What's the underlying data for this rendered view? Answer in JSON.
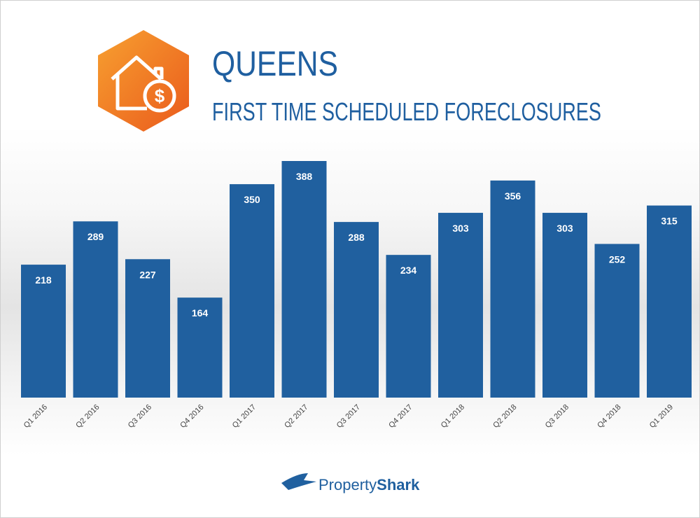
{
  "chart_data": {
    "type": "bar",
    "title": "QUEENS",
    "subtitle": "FIRST TIME SCHEDULED FORECLOSURES",
    "categories": [
      "Q1 2016",
      "Q2 2016",
      "Q3 2016",
      "Q4 2016",
      "Q1 2017",
      "Q2 2017",
      "Q3 2017",
      "Q4 2017",
      "Q1 2018",
      "Q2 2018",
      "Q3 2018",
      "Q4 2018",
      "Q1 2019"
    ],
    "values": [
      218,
      289,
      227,
      164,
      350,
      388,
      288,
      234,
      303,
      356,
      303,
      252,
      315
    ],
    "color": "#20609f"
  },
  "logo": {
    "brand_light": "Property",
    "brand_bold": "Shark"
  }
}
